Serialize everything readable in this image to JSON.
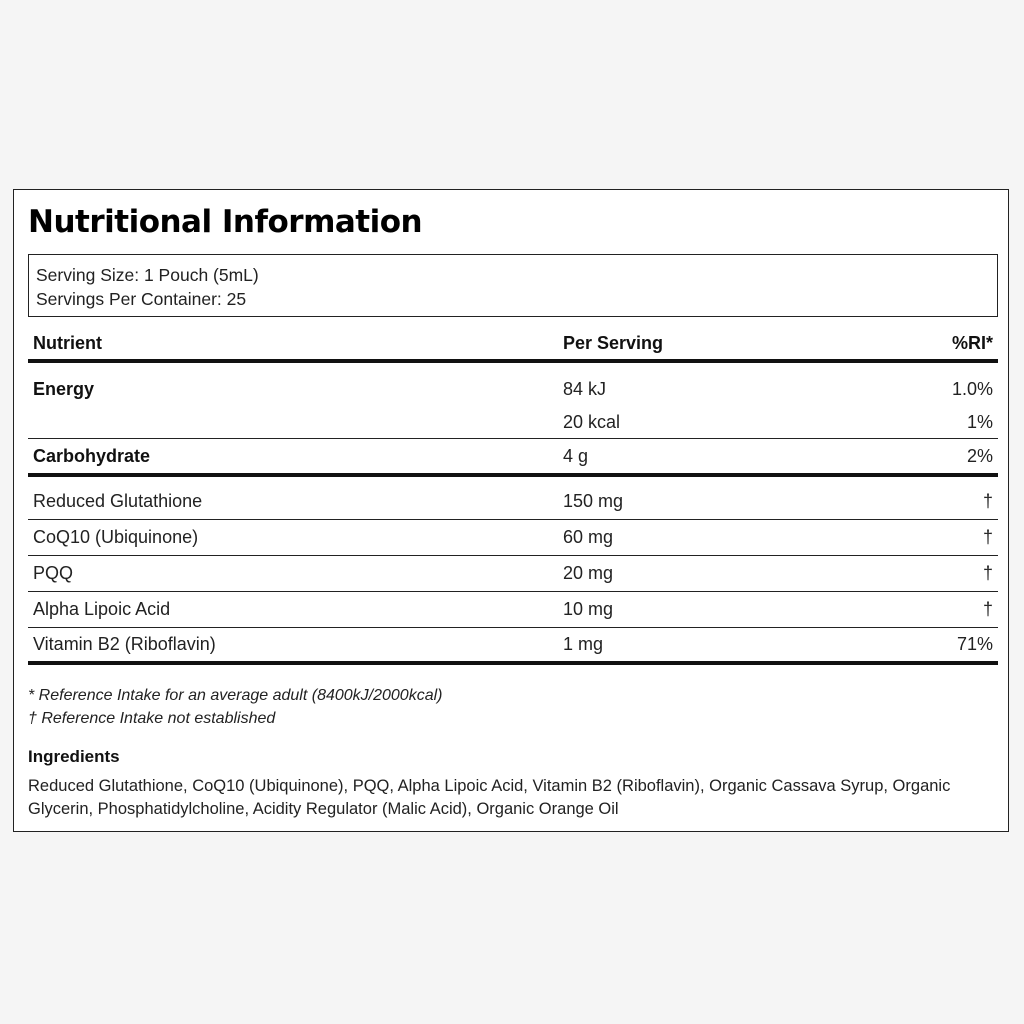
{
  "label": {
    "title": "Nutritional Information",
    "serving_size": "Serving Size: 1 Pouch (5mL)",
    "servings_per_container": "Servings Per Container: 25"
  },
  "table": {
    "headers": {
      "nutrient": "Nutrient",
      "per_serving": "Per Serving",
      "ri": "%RI*"
    },
    "energy": {
      "name": "Energy",
      "rows": [
        {
          "per_serving": "84 kJ",
          "ri": "1.0%"
        },
        {
          "per_serving": "20 kcal",
          "ri": "1%"
        }
      ]
    },
    "carbohydrate": {
      "name": "Carbohydrate",
      "per_serving": "4 g",
      "ri": "2%"
    },
    "items": [
      {
        "name": "Reduced Glutathione",
        "per_serving": "150 mg",
        "ri": "†"
      },
      {
        "name": "CoQ10 (Ubiquinone)",
        "per_serving": "60 mg",
        "ri": "†"
      },
      {
        "name": "PQQ",
        "per_serving": "20 mg",
        "ri": "†"
      },
      {
        "name": "Alpha Lipoic Acid",
        "per_serving": "10 mg",
        "ri": "†"
      },
      {
        "name": "Vitamin B2 (Riboflavin)",
        "per_serving": "1 mg",
        "ri": "71%"
      }
    ]
  },
  "footnotes": [
    "* Reference Intake for an average adult (8400kJ/2000kcal)",
    "† Reference Intake not established"
  ],
  "ingredients": {
    "title": "Ingredients",
    "text": "Reduced Glutathione, CoQ10 (Ubiquinone), PQQ, Alpha Lipoic Acid, Vitamin B2 (Riboflavin), Organic Cassava Syrup, Organic Glycerin, Phosphatidylcholine, Acidity Regulator (Malic Acid), Organic Orange Oil"
  }
}
